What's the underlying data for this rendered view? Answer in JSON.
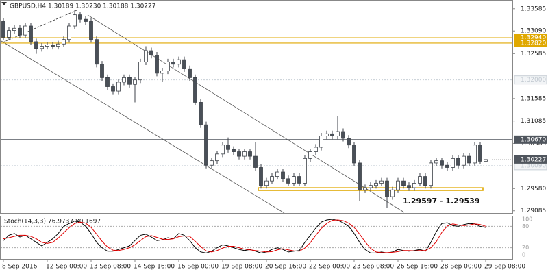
{
  "chart_data": [
    {
      "type": "candlestick",
      "title": "GBPUSD,H4  1.30189 1.30230 1.30188 1.30227",
      "categories": [
        "8 Sep 2016",
        null,
        null,
        null,
        null,
        null,
        null,
        null,
        "12 Sep 00:00",
        null,
        null,
        null,
        null,
        null,
        null,
        null,
        "13 Sep 08:00",
        null,
        null,
        null,
        null,
        null,
        null,
        null,
        "14 Sep 16:00",
        null,
        null,
        null,
        null,
        null,
        null,
        null,
        "16 Sep 00:00",
        null,
        null,
        null,
        null,
        null,
        null,
        null,
        "19 Sep 08:00",
        null,
        null,
        null,
        null,
        null,
        null,
        null,
        "20 Sep 16:00",
        null,
        null,
        null,
        null,
        null,
        null,
        null,
        "22 Sep 00:00",
        null,
        null,
        null,
        null,
        null,
        null,
        null,
        "23 Sep 08:00",
        null,
        null,
        null,
        null,
        null,
        null,
        null,
        "26 Sep 16:00",
        null,
        null,
        null,
        null,
        null,
        null,
        null,
        "28 Sep 00:00",
        null,
        null,
        null,
        null,
        null,
        null,
        null,
        "29 Sep 08:00"
      ],
      "open": [
        1.333,
        1.3295,
        1.331,
        1.3315,
        1.33,
        1.332,
        1.3285,
        1.327,
        1.3275,
        1.3278,
        1.3275,
        1.328,
        1.329,
        1.332,
        1.3345,
        1.3335,
        1.333,
        1.329,
        1.3235,
        1.3205,
        1.3185,
        1.3175,
        1.3195,
        1.3205,
        1.319,
        1.32,
        1.324,
        1.3265,
        1.3255,
        1.3215,
        1.322,
        1.324,
        1.3235,
        1.3245,
        1.3225,
        1.3205,
        1.315,
        1.31,
        1.301,
        1.302,
        1.3035,
        1.3055,
        1.3045,
        1.304,
        1.303,
        1.304,
        1.303,
        1.3005,
        1.2965,
        1.2975,
        1.2985,
        1.2995,
        1.298,
        1.297,
        1.2985,
        1.297,
        1.3025,
        1.304,
        1.305,
        1.3075,
        1.308,
        1.3075,
        1.3085,
        1.307,
        1.3055,
        1.3015,
        1.2955,
        1.296,
        1.2965,
        1.297,
        1.2975,
        1.294,
        1.2955,
        1.2975,
        1.2965,
        1.296,
        1.297,
        1.2985,
        1.2965,
        1.3015,
        1.302,
        1.301,
        1.3005,
        1.3025,
        1.301,
        1.303,
        1.3015,
        1.3055,
        1.30189
      ],
      "high": [
        1.3337,
        1.3317,
        1.3322,
        1.3322,
        1.3327,
        1.3327,
        1.3292,
        1.3282,
        1.3285,
        1.3285,
        1.3287,
        1.3297,
        1.3327,
        1.3355,
        1.3352,
        1.3342,
        1.3337,
        1.3297,
        1.3242,
        1.3212,
        1.3192,
        1.3202,
        1.3212,
        1.3212,
        1.3207,
        1.3247,
        1.3275,
        1.3272,
        1.3262,
        1.3227,
        1.3247,
        1.3247,
        1.3252,
        1.3252,
        1.3232,
        1.3212,
        1.3157,
        1.3107,
        1.3027,
        1.3042,
        1.3062,
        1.3072,
        1.3052,
        1.3047,
        1.3047,
        1.3047,
        1.3062,
        1.3012,
        1.2982,
        1.2992,
        1.3002,
        1.3002,
        1.2987,
        1.2992,
        1.2992,
        1.3032,
        1.3047,
        1.3057,
        1.3082,
        1.3087,
        1.3087,
        1.312,
        1.3092,
        1.3077,
        1.3062,
        1.3022,
        1.2967,
        1.2972,
        1.2977,
        1.2982,
        1.2982,
        1.2962,
        1.2982,
        1.2982,
        1.2972,
        1.2977,
        1.2992,
        1.2992,
        1.3022,
        1.3027,
        1.3027,
        1.3017,
        1.3032,
        1.3032,
        1.3037,
        1.3037,
        1.3062,
        1.3062,
        1.3023
      ],
      "low": [
        1.3288,
        1.3288,
        1.3303,
        1.3293,
        1.3293,
        1.3278,
        1.3258,
        1.3263,
        1.3268,
        1.3268,
        1.3268,
        1.3273,
        1.3283,
        1.3313,
        1.3328,
        1.3323,
        1.3283,
        1.3228,
        1.3198,
        1.3178,
        1.3168,
        1.3168,
        1.3188,
        1.3183,
        1.315,
        1.3193,
        1.3233,
        1.3248,
        1.3208,
        1.3195,
        1.3213,
        1.3228,
        1.3228,
        1.3218,
        1.3198,
        1.3143,
        1.3093,
        1.3003,
        1.3003,
        1.3013,
        1.3028,
        1.3038,
        1.3033,
        1.3023,
        1.3023,
        1.3023,
        1.2998,
        1.2958,
        1.2958,
        1.2968,
        1.2978,
        1.2973,
        1.2963,
        1.2963,
        1.2963,
        1.2963,
        1.3018,
        1.3033,
        1.3043,
        1.3068,
        1.3068,
        1.3068,
        1.3063,
        1.3048,
        1.3008,
        1.293,
        1.2948,
        1.2953,
        1.2958,
        1.2963,
        1.2915,
        1.2933,
        1.2948,
        1.2958,
        1.2953,
        1.2953,
        1.2963,
        1.2958,
        1.2958,
        1.3008,
        1.3003,
        1.2998,
        1.2998,
        1.3003,
        1.3003,
        1.3008,
        1.3008,
        1.3012,
        1.30188
      ],
      "close": [
        1.3295,
        1.331,
        1.3315,
        1.33,
        1.332,
        1.3285,
        1.327,
        1.3275,
        1.3278,
        1.3275,
        1.328,
        1.329,
        1.332,
        1.3345,
        1.3335,
        1.333,
        1.329,
        1.3235,
        1.3205,
        1.3185,
        1.3175,
        1.3195,
        1.3205,
        1.319,
        1.32,
        1.324,
        1.3265,
        1.3255,
        1.3215,
        1.322,
        1.324,
        1.3235,
        1.3245,
        1.3225,
        1.3205,
        1.315,
        1.31,
        1.301,
        1.302,
        1.3035,
        1.3055,
        1.3045,
        1.304,
        1.303,
        1.304,
        1.303,
        1.3005,
        1.2965,
        1.2975,
        1.2985,
        1.2995,
        1.298,
        1.297,
        1.2985,
        1.297,
        1.3025,
        1.304,
        1.305,
        1.3075,
        1.308,
        1.3075,
        1.3085,
        1.307,
        1.3055,
        1.3015,
        1.2955,
        1.296,
        1.2965,
        1.297,
        1.2975,
        1.294,
        1.2955,
        1.2975,
        1.2965,
        1.296,
        1.297,
        1.2985,
        1.2965,
        1.3015,
        1.302,
        1.301,
        1.3005,
        1.3025,
        1.301,
        1.303,
        1.3015,
        1.3055,
        1.30189,
        1.30227
      ],
      "up_color": "#ffffff",
      "down_color": "#4a5058",
      "edge_color": "#3c4148",
      "ylim": [
        1.2902,
        1.3378
      ],
      "yticks": [
        1.33585,
        {
          "value": 1.3309,
          "label": "1.33090"
        },
        1.32585,
        1.31585,
        1.31085,
        1.30585,
        {
          "value": 1.2958,
          "label": "1.29580"
        },
        1.29085
      ],
      "levels": [
        {
          "value": 1.3294,
          "label": "1.32940",
          "color": "#e0a800",
          "style": "solid"
        },
        {
          "value": 1.3282,
          "label": "1.32820",
          "color": "#e0a800",
          "style": "solid"
        },
        {
          "value": 1.32,
          "label": "1.32000",
          "color": "#c8cfd6",
          "style": "dotted"
        },
        {
          "value": 1.3067,
          "label": "1.30670",
          "color": "#50565e",
          "style": "solid"
        },
        {
          "value": 1.3009,
          "label": "1.30090",
          "color": "#c8cfd6",
          "style": "dotted"
        }
      ],
      "zone": {
        "values": [
          1.29597,
          1.29539
        ],
        "label": "1.29597 - 1.29539",
        "color": "#e0a800"
      }
    },
    {
      "type": "line",
      "title": "Stoch(14,3,3) 76.9737 80.1697",
      "ylim": [
        0,
        100
      ],
      "yticks": [
        0,
        20,
        80,
        100
      ],
      "series": [
        {
          "color": "#000000",
          "values": [
            40,
            55,
            60,
            50,
            55,
            45,
            35,
            25,
            35,
            45,
            60,
            80,
            88,
            95,
            92,
            80,
            60,
            35,
            20,
            10,
            10,
            15,
            20,
            25,
            40,
            55,
            58,
            50,
            40,
            42,
            48,
            45,
            60,
            55,
            40,
            20,
            8,
            5,
            10,
            20,
            28,
            25,
            20,
            15,
            12,
            15,
            10,
            5,
            8,
            15,
            20,
            15,
            8,
            10,
            12,
            35,
            55,
            75,
            92,
            98,
            100,
            97,
            90,
            80,
            60,
            35,
            15,
            5,
            5,
            8,
            5,
            8,
            15,
            12,
            10,
            12,
            15,
            10,
            35,
            65,
            88,
            90,
            82,
            80,
            85,
            88,
            87,
            80,
            76.9737
          ]
        },
        {
          "color": "#e00000",
          "values": [
            45,
            48,
            52,
            55,
            55,
            52,
            45,
            35,
            32,
            35,
            47,
            62,
            76,
            88,
            92,
            89,
            77,
            58,
            38,
            22,
            13,
            12,
            15,
            20,
            28,
            40,
            51,
            54,
            49,
            44,
            43,
            45,
            51,
            53,
            52,
            38,
            23,
            11,
            8,
            12,
            19,
            24,
            24,
            20,
            16,
            14,
            12,
            10,
            8,
            9,
            14,
            17,
            14,
            11,
            10,
            19,
            34,
            55,
            74,
            88,
            97,
            98,
            96,
            89,
            77,
            58,
            37,
            18,
            8,
            6,
            6,
            7,
            9,
            12,
            12,
            11,
            12,
            12,
            20,
            37,
            63,
            81,
            87,
            84,
            82,
            84,
            87,
            85,
            80.1697
          ]
        }
      ]
    }
  ]
}
